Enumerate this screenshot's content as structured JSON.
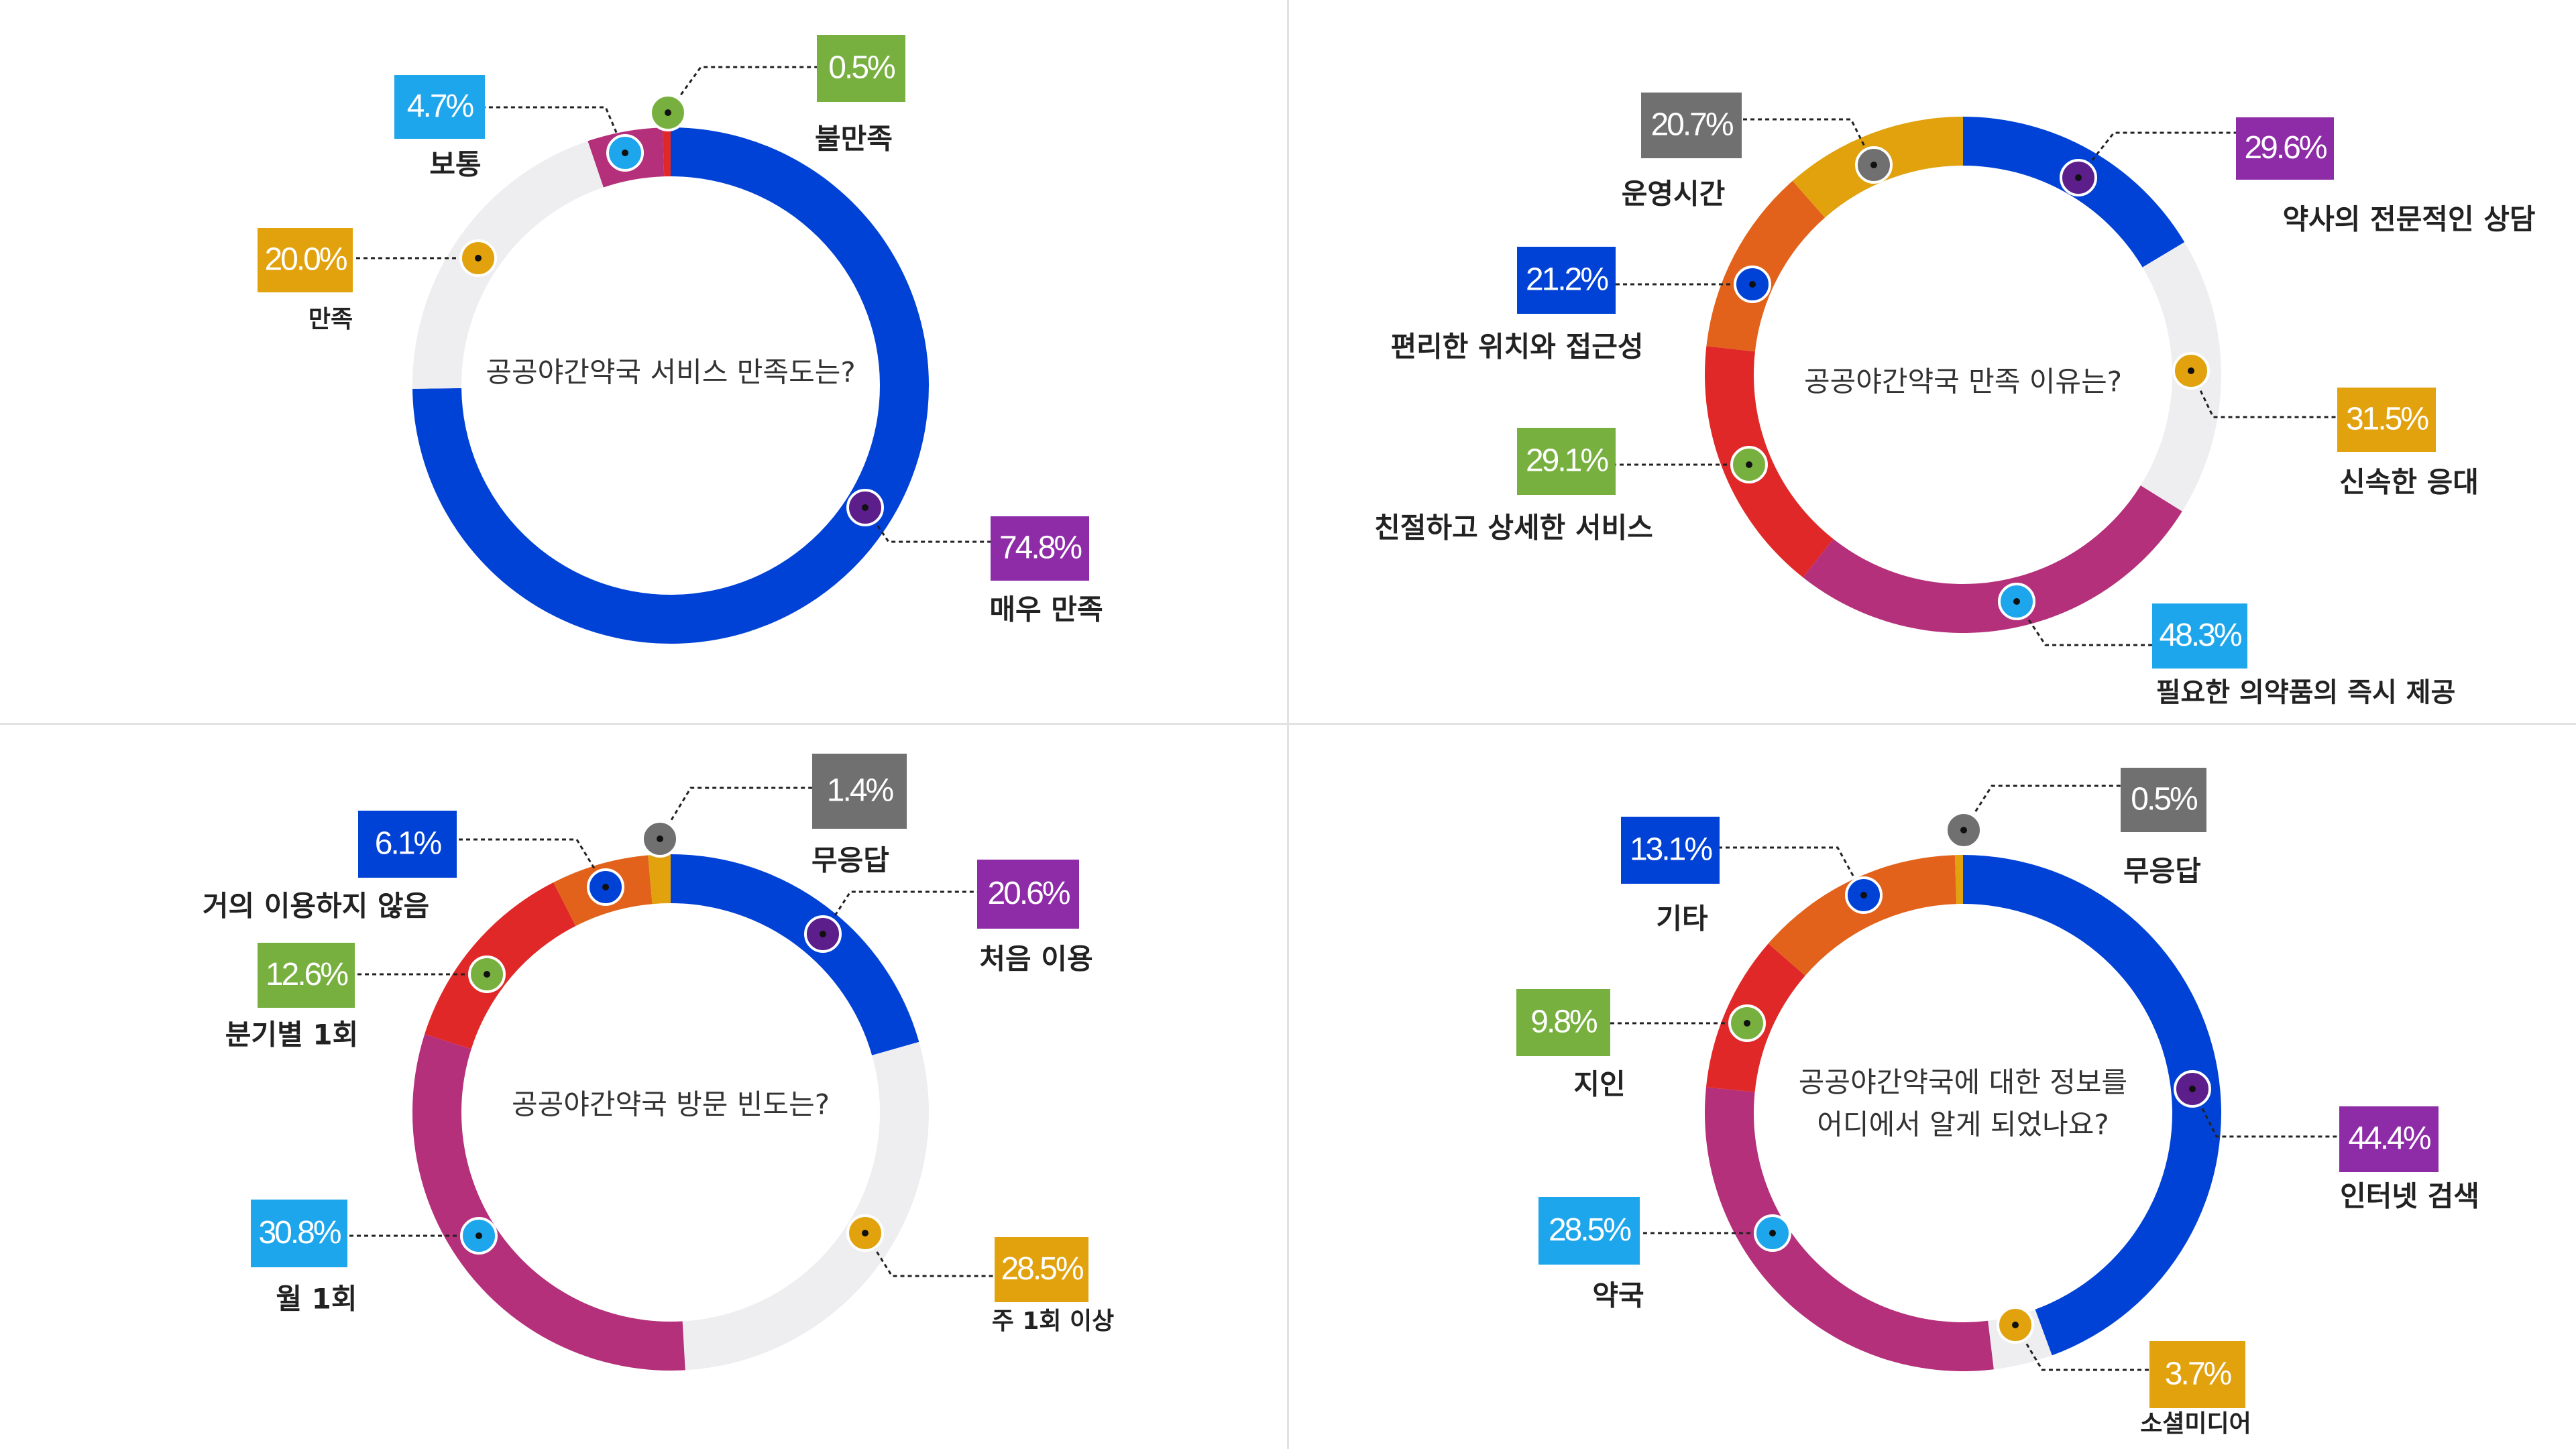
{
  "colors": {
    "blue": "#0142D6",
    "magenta": "#B5307A",
    "red": "#E02828",
    "orange": "#E2621C",
    "gold": "#E1A20E",
    "lightgray": "#EEEEF1",
    "darkgray": "#707070",
    "green": "#78B040",
    "sky": "#1EA6EC",
    "purple": "#8E2CA8",
    "darkpurple": "#5C1E8A",
    "divider": "#E2E2E2"
  },
  "chart_data": [
    {
      "type": "pie",
      "title": "공공야간약국 서비스 만족도는?",
      "title_lines": [
        "공공야간약국 서비스 만족도는?"
      ],
      "series": [
        {
          "name": "매우 만족",
          "value": 74.8,
          "label": "74.8%",
          "ring_color": "blue",
          "box_color": "purple",
          "dot_color": "darkpurple"
        },
        {
          "name": "만족",
          "value": 20.0,
          "label": "20.0%",
          "ring_color": "lightgray",
          "box_color": "gold",
          "dot_color": "gold"
        },
        {
          "name": "보통",
          "value": 4.7,
          "label": "4.7%",
          "ring_color": "magenta",
          "box_color": "sky",
          "dot_color": "sky"
        },
        {
          "name": "불만족",
          "value": 0.5,
          "label": "0.5%",
          "ring_color": "red",
          "box_color": "green",
          "dot_color": "green"
        }
      ]
    },
    {
      "type": "pie",
      "title": "공공야간약국 만족 이유는?",
      "title_lines": [
        "공공야간약국 만족 이유는?"
      ],
      "series": [
        {
          "name": "약사의 전문적인 상담",
          "value": 29.6,
          "label": "29.6%",
          "ring_color": "blue",
          "box_color": "purple",
          "dot_color": "darkpurple"
        },
        {
          "name": "신속한 응대",
          "value": 31.5,
          "label": "31.5%",
          "ring_color": "lightgray",
          "box_color": "gold",
          "dot_color": "gold"
        },
        {
          "name": "필요한 의약품의 즉시 제공",
          "value": 48.3,
          "label": "48.3%",
          "ring_color": "magenta",
          "box_color": "sky",
          "dot_color": "sky"
        },
        {
          "name": "친절하고 상세한 서비스",
          "value": 29.1,
          "label": "29.1%",
          "ring_color": "red",
          "box_color": "green",
          "dot_color": "green"
        },
        {
          "name": "편리한 위치와 접근성",
          "value": 21.2,
          "label": "21.2%",
          "ring_color": "orange",
          "box_color": "blue",
          "dot_color": "blue"
        },
        {
          "name": "운영시간",
          "value": 20.7,
          "label": "20.7%",
          "ring_color": "gold",
          "box_color": "darkgray",
          "dot_color": "darkgray"
        }
      ]
    },
    {
      "type": "pie",
      "title": "공공야간약국 방문 빈도는?",
      "title_lines": [
        "공공야간약국 방문 빈도는?"
      ],
      "series": [
        {
          "name": "처음 이용",
          "value": 20.6,
          "label": "20.6%",
          "ring_color": "blue",
          "box_color": "purple",
          "dot_color": "darkpurple"
        },
        {
          "name": "주 1회 이상",
          "value": 28.5,
          "label": "28.5%",
          "ring_color": "lightgray",
          "box_color": "gold",
          "dot_color": "gold"
        },
        {
          "name": "월 1회",
          "value": 30.8,
          "label": "30.8%",
          "ring_color": "magenta",
          "box_color": "sky",
          "dot_color": "sky"
        },
        {
          "name": "분기별 1회",
          "value": 12.6,
          "label": "12.6%",
          "ring_color": "red",
          "box_color": "green",
          "dot_color": "green"
        },
        {
          "name": "거의 이용하지 않음",
          "value": 6.1,
          "label": "6.1%",
          "ring_color": "orange",
          "box_color": "blue",
          "dot_color": "blue"
        },
        {
          "name": "무응답",
          "value": 1.4,
          "label": "1.4%",
          "ring_color": "gold",
          "box_color": "darkgray",
          "dot_color": "darkgray"
        }
      ]
    },
    {
      "type": "pie",
      "title": "공공야간약국에 대한 정보를 어디에서 알게 되었나요?",
      "title_lines": [
        "공공야간약국에 대한 정보를",
        "어디에서 알게 되었나요?"
      ],
      "series": [
        {
          "name": "인터넷 검색",
          "value": 44.4,
          "label": "44.4%",
          "ring_color": "blue",
          "box_color": "purple",
          "dot_color": "darkpurple"
        },
        {
          "name": "소셜미디어",
          "value": 3.7,
          "label": "3.7%",
          "ring_color": "lightgray",
          "box_color": "gold",
          "dot_color": "gold"
        },
        {
          "name": "약국",
          "value": 28.5,
          "label": "28.5%",
          "ring_color": "magenta",
          "box_color": "sky",
          "dot_color": "sky"
        },
        {
          "name": "지인",
          "value": 9.8,
          "label": "9.8%",
          "ring_color": "red",
          "box_color": "green",
          "dot_color": "green"
        },
        {
          "name": "기타",
          "value": 13.1,
          "label": "13.1%",
          "ring_color": "orange",
          "box_color": "blue",
          "dot_color": "blue"
        },
        {
          "name": "무응답",
          "value": 0.5,
          "label": "0.5%",
          "ring_color": "gold",
          "box_color": "darkgray",
          "dot_color": "darkgray"
        }
      ]
    }
  ]
}
